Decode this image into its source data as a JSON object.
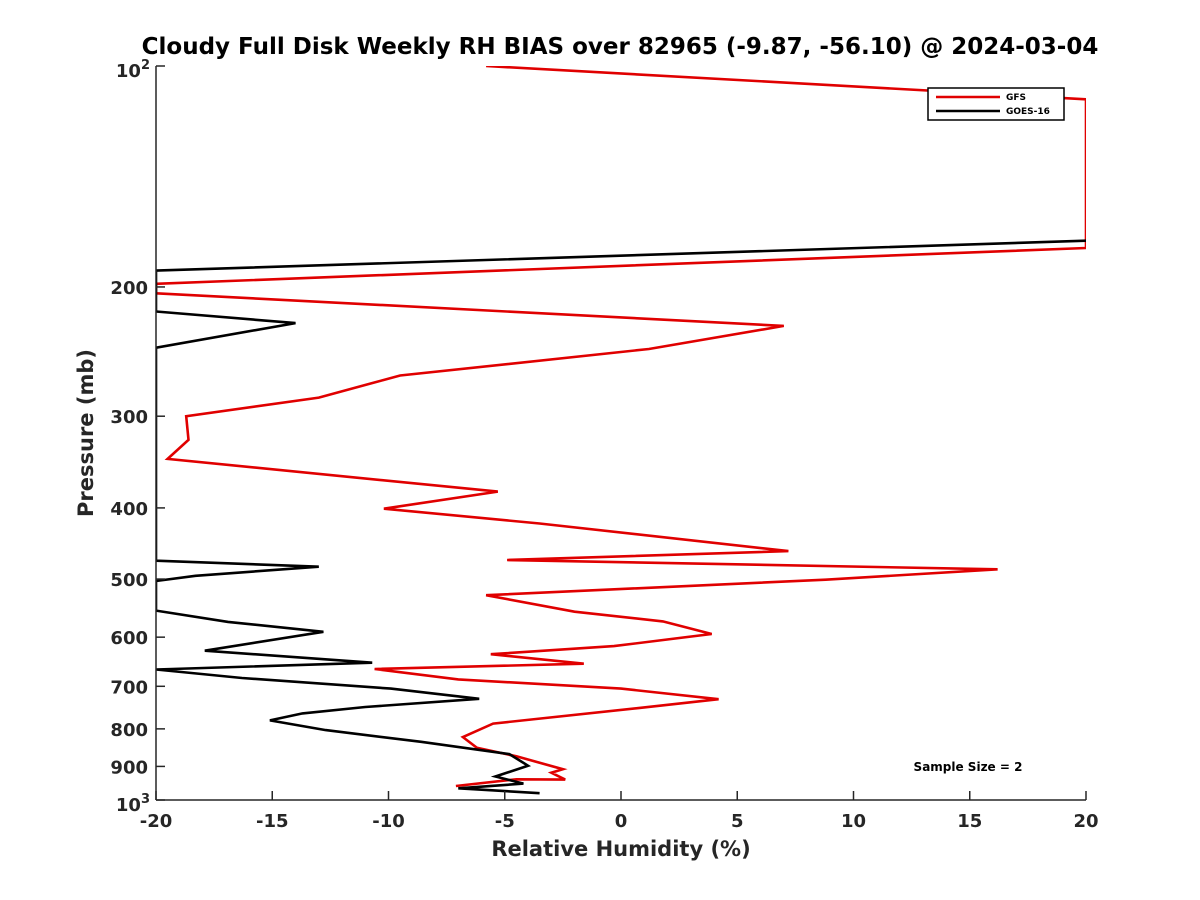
{
  "chart_data": {
    "type": "line",
    "title": "Cloudy Full Disk Weekly RH BIAS over 82965 (-9.87, -56.10) @ 2024-03-04",
    "xlabel": "Relative Humidity (%)",
    "ylabel": "Pressure (mb)",
    "xlim": [
      -20,
      20
    ],
    "ylim": [
      100,
      1000
    ],
    "y_scale": "log",
    "y_reversed": true,
    "grid": false,
    "legend_position": "top-right",
    "x_ticks": [
      "-20",
      "-15",
      "-10",
      "-5",
      "0",
      "5",
      "10",
      "15",
      "20"
    ],
    "y_ticks": [
      {
        "value": 100,
        "base": "10",
        "exp": "2"
      },
      {
        "value": 200,
        "label": "200"
      },
      {
        "value": 300,
        "label": "300"
      },
      {
        "value": 400,
        "label": "400"
      },
      {
        "value": 500,
        "label": "500"
      },
      {
        "value": 600,
        "label": "600"
      },
      {
        "value": 700,
        "label": "700"
      },
      {
        "value": 800,
        "label": "800"
      },
      {
        "value": 900,
        "label": "900"
      },
      {
        "value": 1000,
        "base": "10",
        "exp": "3"
      }
    ],
    "annotation": "Sample Size = 2",
    "series": [
      {
        "name": "GFS",
        "color": "#e00000",
        "points": [
          [
            -5.8,
            100
          ],
          [
            20,
            111
          ],
          [
            20,
            177
          ],
          [
            -20,
            198
          ],
          [
            -20,
            204
          ],
          [
            7,
            226
          ],
          [
            1.2,
            243
          ],
          [
            -9.5,
            264
          ],
          [
            -13,
            283
          ],
          [
            -18.7,
            300
          ],
          [
            -18.6,
            323
          ],
          [
            -19.5,
            343
          ],
          [
            -5.3,
            380
          ],
          [
            -10.2,
            401
          ],
          [
            -3.5,
            420
          ],
          [
            7.2,
            458
          ],
          [
            -4.9,
            471
          ],
          [
            16.2,
            485
          ],
          [
            8.8,
            501
          ],
          [
            -5.8,
            526
          ],
          [
            -2,
            554
          ],
          [
            1.8,
            571
          ],
          [
            3.9,
            594
          ],
          [
            -0.3,
            617
          ],
          [
            -5.6,
            633
          ],
          [
            -1.6,
            652
          ],
          [
            -10.6,
            663
          ],
          [
            -7,
            685
          ],
          [
            0,
            705
          ],
          [
            4.2,
            729
          ],
          [
            0.8,
            749
          ],
          [
            -5.5,
            787
          ],
          [
            -6.8,
            821
          ],
          [
            -6.2,
            849
          ],
          [
            -4.5,
            872
          ],
          [
            -2.5,
            908
          ],
          [
            -3,
            918
          ],
          [
            -2.4,
            938
          ],
          [
            -4.5,
            937
          ],
          [
            -7.1,
            957
          ]
        ]
      },
      {
        "name": "GOES-16",
        "color": "#000000",
        "points": [
          [
            20,
            173
          ],
          [
            -20,
            190
          ],
          [
            -20,
            216
          ],
          [
            -14,
            224
          ],
          [
            -20,
            242
          ],
          [
            -20,
            472
          ],
          [
            -13,
            481
          ],
          [
            -18.3,
            495
          ],
          [
            -20,
            503
          ],
          [
            -20,
            552
          ],
          [
            -16.9,
            572
          ],
          [
            -12.8,
            590
          ],
          [
            -17.9,
            626
          ],
          [
            -10.7,
            650
          ],
          [
            -20,
            664
          ],
          [
            -16.3,
            682
          ],
          [
            -9.9,
            705
          ],
          [
            -6.1,
            728
          ],
          [
            -11,
            747
          ],
          [
            -13.7,
            762
          ],
          [
            -15.1,
            779
          ],
          [
            -12.7,
            803
          ],
          [
            -8.6,
            833
          ],
          [
            -4.8,
            866
          ],
          [
            -4,
            898
          ],
          [
            -5.4,
            929
          ],
          [
            -4.2,
            950
          ],
          [
            -7,
            964
          ],
          [
            -3.5,
            979
          ]
        ]
      }
    ]
  }
}
